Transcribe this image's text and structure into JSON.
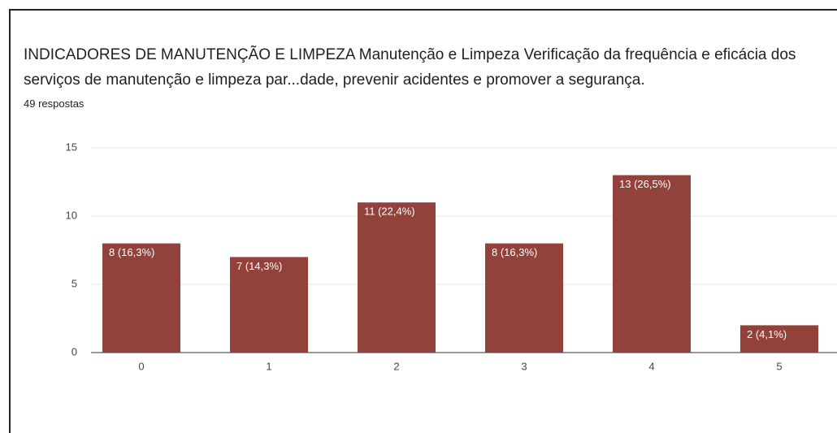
{
  "chart_data": {
    "type": "bar",
    "title": "INDICADORES DE MANUTENÇÃO E LIMPEZA  Manutenção e Limpeza  Verificação da frequência e eficácia dos serviços de manutenção e limpeza par...dade, prevenir acidentes e promover a segurança.",
    "subtitle": "49 respostas",
    "categories": [
      "0",
      "1",
      "2",
      "3",
      "4",
      "5"
    ],
    "values": [
      8,
      7,
      11,
      8,
      13,
      2
    ],
    "value_labels": [
      "8 (16,3%)",
      "7 (14,3%)",
      "11 (22,4%)",
      "8 (16,3%)",
      "13 (26,5%)",
      "2 (4,1%)"
    ],
    "color": "#93423b",
    "ylim": [
      0,
      15
    ],
    "yticks": [
      0,
      5,
      10,
      15
    ],
    "grid": true
  }
}
